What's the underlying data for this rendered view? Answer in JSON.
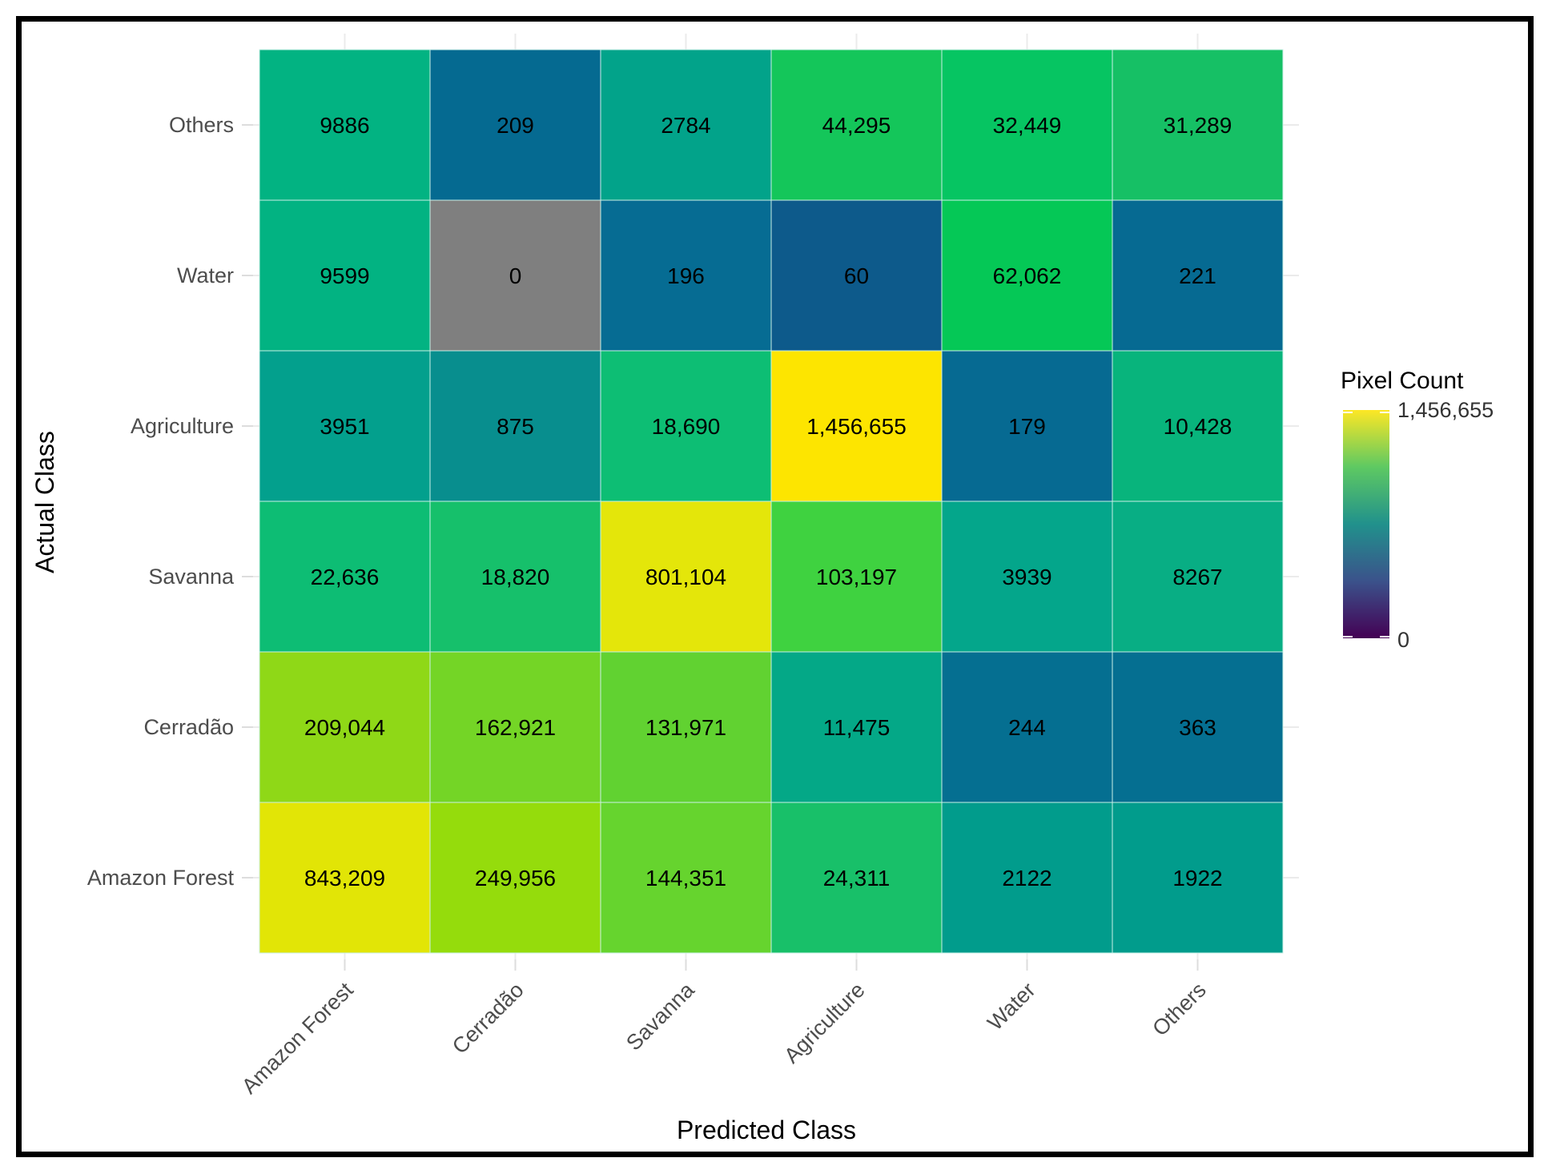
{
  "chart_data": {
    "type": "heatmap",
    "xlabel": "Predicted Class",
    "ylabel": "Actual Class",
    "x_categories": [
      "Amazon Forest",
      "Cerradão",
      "Savanna",
      "Agriculture",
      "Water",
      "Others"
    ],
    "y_categories": [
      "Amazon Forest",
      "Cerradão",
      "Savanna",
      "Agriculture",
      "Water",
      "Others"
    ],
    "values": [
      [
        843209,
        249956,
        144351,
        24311,
        2122,
        1922
      ],
      [
        209044,
        162921,
        131971,
        11475,
        244,
        363
      ],
      [
        22636,
        18820,
        801104,
        103197,
        3939,
        8267
      ],
      [
        3951,
        875,
        18690,
        1456655,
        179,
        10428
      ],
      [
        9599,
        0,
        196,
        60,
        62062,
        221
      ],
      [
        9886,
        209,
        2784,
        44295,
        32449,
        31289
      ]
    ],
    "labels": [
      [
        "843,209",
        "249,956",
        "144,351",
        "24,311",
        "2122",
        "1922"
      ],
      [
        "209,044",
        "162,921",
        "131,971",
        "11,475",
        "244",
        "363"
      ],
      [
        "22,636",
        "18,820",
        "801,104",
        "103,197",
        "3939",
        "8267"
      ],
      [
        "3951",
        "875",
        "18,690",
        "1,456,655",
        "179",
        "10,428"
      ],
      [
        "9599",
        "0",
        "196",
        "60",
        "62,062",
        "221"
      ],
      [
        "9886",
        "209",
        "2784",
        "44,295",
        "32,449",
        "31,289"
      ]
    ],
    "cell_colors": [
      [
        "#e2e506",
        "#95dc0c",
        "#66d42e",
        "#18c069",
        "#019c8c",
        "#019c8c"
      ],
      [
        "#8fd817",
        "#74d526",
        "#61d231",
        "#04a887",
        "#056f91",
        "#056f91"
      ],
      [
        "#0dbd74",
        "#16c06b",
        "#e4e60a",
        "#3fd240",
        "#04a68b",
        "#08ae84"
      ],
      [
        "#03a08d",
        "#088e8e",
        "#0dbe74",
        "#fde500",
        "#066a92",
        "#08b47c"
      ],
      [
        "#02b382",
        "#7f7f7f",
        "#066c93",
        "#0d5a8b",
        "#05c856",
        "#066a92"
      ],
      [
        "#02b382",
        "#056a91",
        "#02a38a",
        "#14c65a",
        "#06c562",
        "#16c065"
      ]
    ],
    "legend": {
      "title": "Pixel Count",
      "max_label": "1,456,655",
      "min_label": "0",
      "colors": [
        "#fde725",
        "#5ec962",
        "#21918c",
        "#3b528b",
        "#440154"
      ],
      "placement": "right"
    }
  }
}
